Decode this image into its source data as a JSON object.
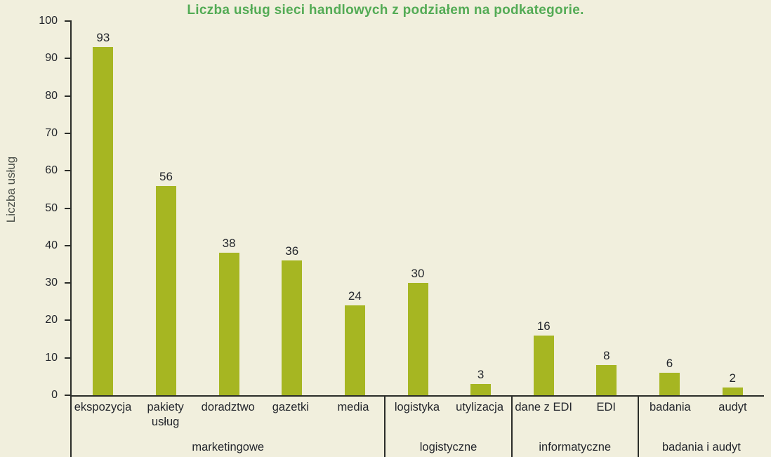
{
  "title": "Liczba usług sieci handlowych z podziałem na podkategorie.",
  "y_axis_title": "Liczba usług",
  "colors": {
    "background": "#f1efdd",
    "bar": "#a6b622",
    "title": "#53ab55",
    "axis": "#2b2d29",
    "text": "#23262c"
  },
  "chart_data": {
    "type": "bar",
    "title": "Liczba usług sieci handlowych z podziałem na podkategorie.",
    "xlabel": "",
    "ylabel": "Liczba usług",
    "ylim": [
      0,
      100
    ],
    "yticks": [
      0,
      10,
      20,
      30,
      40,
      50,
      60,
      70,
      80,
      90,
      100
    ],
    "grid": false,
    "legend": false,
    "groups": [
      {
        "label": "marketingowe",
        "bars": [
          {
            "label": "ekspozycja",
            "value": 93
          },
          {
            "label": "pakiety usług",
            "value": 56
          },
          {
            "label": "doradztwo",
            "value": 38
          },
          {
            "label": "gazetki",
            "value": 36
          },
          {
            "label": "media",
            "value": 24
          }
        ]
      },
      {
        "label": "logistyczne",
        "bars": [
          {
            "label": "logistyka",
            "value": 30
          },
          {
            "label": "utylizacja",
            "value": 3
          }
        ]
      },
      {
        "label": "informatyczne",
        "bars": [
          {
            "label": "dane z EDI",
            "value": 16
          },
          {
            "label": "EDI",
            "value": 8
          }
        ]
      },
      {
        "label": "badania i audyt",
        "bars": [
          {
            "label": "badania",
            "value": 6
          },
          {
            "label": "audyt",
            "value": 2
          }
        ]
      }
    ]
  }
}
